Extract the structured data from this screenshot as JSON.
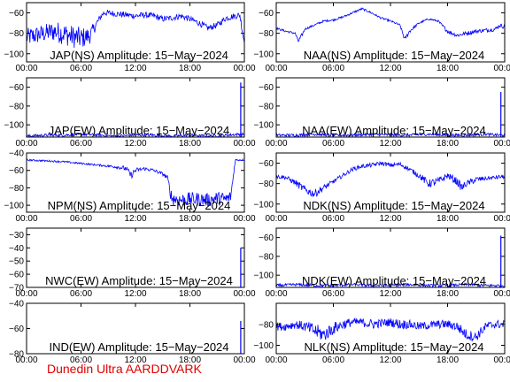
{
  "footer_text": "Dunedin Ultra AARDDVARK",
  "line_color": "#0000ff",
  "footer_color": "#e00000",
  "chart_data": [
    {
      "type": "line",
      "title": "JAP(NS) Amplitude: 15−May−2024",
      "ylim": [
        -108,
        -50
      ],
      "yticks": [
        -100,
        -80,
        -60
      ],
      "ytick_labels": [
        "−100",
        "−80",
        "−60"
      ],
      "xlim": [
        0,
        24
      ],
      "xtick_labels": [
        "00:00",
        "06:00",
        "12:00",
        "18:00",
        "00:00"
      ],
      "x": [
        0,
        1,
        2,
        3,
        4,
        5,
        6,
        7,
        8,
        8.5,
        9,
        10,
        11,
        12,
        13,
        14,
        15,
        16,
        17,
        18,
        19,
        20,
        21,
        22,
        23,
        23.5,
        24
      ],
      "y": [
        -84,
        -82,
        -80,
        -78,
        -80,
        -83,
        -85,
        -82,
        -66,
        -60,
        -60,
        -61,
        -62,
        -63,
        -62,
        -63,
        -66,
        -65,
        -63,
        -66,
        -70,
        -75,
        -72,
        -65,
        -63,
        -62,
        -89
      ],
      "noise": [
        9,
        9,
        9,
        10,
        11,
        11,
        11,
        8,
        3,
        3,
        3,
        3,
        3,
        3,
        3,
        3,
        3,
        3,
        3,
        3,
        3,
        3,
        3,
        3,
        3,
        3,
        5
      ]
    },
    {
      "type": "line",
      "title": "NAA(NS) Amplitude: 15−May−2024",
      "ylim": [
        -108,
        -50
      ],
      "yticks": [
        -100,
        -80,
        -60
      ],
      "ytick_labels": [
        "−100",
        "−80",
        "−60"
      ],
      "xlim": [
        0,
        24
      ],
      "xtick_labels": [
        "00:00",
        "06:00",
        "12:00",
        "18:00",
        "00:00"
      ],
      "x": [
        0,
        1,
        2,
        2.3,
        2.7,
        3,
        4,
        5,
        6,
        7,
        8,
        9,
        10,
        11,
        12,
        13,
        13.5,
        14,
        15,
        16,
        17,
        18,
        19,
        20,
        21,
        22,
        23,
        23.5,
        24
      ],
      "y": [
        -75,
        -78,
        -80,
        -88,
        -82,
        -76,
        -72,
        -68,
        -67,
        -64,
        -60,
        -56,
        -60,
        -65,
        -68,
        -72,
        -86,
        -78,
        -70,
        -66,
        -68,
        -78,
        -82,
        -80,
        -78,
        -77,
        -76,
        -72,
        -74
      ],
      "noise": [
        1,
        1,
        1,
        2,
        2,
        1,
        1,
        1,
        1,
        1,
        1,
        1,
        1,
        1,
        1,
        1,
        2,
        2,
        1,
        1,
        1,
        2,
        2,
        2,
        2,
        2,
        2,
        2,
        2
      ]
    },
    {
      "type": "line",
      "title": "JAP(EW) Amplitude: 15−May−2024",
      "ylim": [
        -113,
        -50
      ],
      "yticks": [
        -100,
        -80,
        -60
      ],
      "ytick_labels": [
        "−100",
        "−80",
        "−60"
      ],
      "xlim": [
        0,
        24
      ],
      "xtick_labels": [
        "00:00",
        "06:00",
        "12:00",
        "18:00",
        "00:00"
      ],
      "x": [
        0,
        2,
        4,
        6,
        8,
        10,
        12,
        14,
        16,
        18,
        20,
        22,
        23.4
      ],
      "y": [
        -112,
        -111,
        -111,
        -110,
        -111,
        -112,
        -111,
        -111,
        -112,
        -111,
        -112,
        -111,
        -110
      ],
      "noise": [
        1.5,
        1.5,
        1.5,
        1.5,
        1.5,
        1.5,
        1.5,
        1.5,
        1.5,
        1.5,
        1.5,
        1.5,
        1.5
      ],
      "spike_x": 23.6,
      "spike_y": -55
    },
    {
      "type": "line",
      "title": "NAA(EW) Amplitude: 15−May−2024",
      "ylim": [
        -113,
        -50
      ],
      "yticks": [
        -100,
        -80,
        -60
      ],
      "ytick_labels": [
        "−100",
        "−80",
        "−60"
      ],
      "xlim": [
        0,
        24
      ],
      "xtick_labels": [
        "00:00",
        "06:00",
        "12:00",
        "18:00",
        "00:00"
      ],
      "x": [
        0,
        2,
        4,
        6,
        8,
        10,
        12,
        14,
        16,
        18,
        20,
        22,
        23.4
      ],
      "y": [
        -111,
        -111,
        -110,
        -111,
        -111,
        -110,
        -111,
        -111,
        -110,
        -111,
        -111,
        -110,
        -111
      ],
      "noise": [
        1.5,
        1.5,
        1.5,
        1.5,
        1.5,
        1.5,
        1.5,
        1.5,
        1.5,
        1.5,
        1.5,
        1.5,
        1.5
      ],
      "spike_x": 23.6,
      "spike_y": -65
    },
    {
      "type": "line",
      "title": "NPM(NS) Amplitude: 15−May−2024",
      "ylim": [
        -108,
        -40
      ],
      "yticks": [
        -100,
        -80,
        -60,
        -40
      ],
      "ytick_labels": [
        "−100",
        "−80",
        "−60",
        "−40"
      ],
      "xlim": [
        0,
        24
      ],
      "xtick_labels": [
        "00:00",
        "06:00",
        "12:00",
        "18:00",
        "00:00"
      ],
      "x": [
        0,
        2,
        4,
        6,
        8,
        10,
        11,
        11.5,
        12,
        13,
        14,
        15,
        15.5,
        16,
        17,
        18,
        19,
        20,
        21,
        22,
        22.5,
        23,
        24
      ],
      "y": [
        -48,
        -49,
        -50,
        -52,
        -54,
        -56,
        -58,
        -66,
        -60,
        -58,
        -60,
        -64,
        -68,
        -92,
        -94,
        -93,
        -93,
        -94,
        -92,
        -93,
        -90,
        -48,
        -48
      ],
      "noise": [
        1,
        1,
        1,
        1,
        1,
        2,
        3,
        4,
        3,
        2,
        2,
        2,
        3,
        8,
        8,
        8,
        8,
        8,
        8,
        8,
        6,
        1,
        1
      ]
    },
    {
      "type": "line",
      "title": "NDK(NS) Amplitude: 15−May−2024",
      "ylim": [
        -108,
        -50
      ],
      "yticks": [
        -100,
        -80,
        -60
      ],
      "ytick_labels": [
        "−100",
        "−80",
        "−60"
      ],
      "xlim": [
        0,
        24
      ],
      "xtick_labels": [
        "00:00",
        "06:00",
        "12:00",
        "18:00",
        "00:00"
      ],
      "x": [
        0,
        1,
        2,
        3,
        4,
        5,
        6,
        7,
        8,
        9,
        10,
        11,
        12,
        13,
        14,
        15,
        16,
        17,
        18,
        19,
        19.5,
        20,
        21,
        22,
        23,
        24
      ],
      "y": [
        -73,
        -74,
        -79,
        -86,
        -90,
        -84,
        -78,
        -72,
        -66,
        -63,
        -62,
        -60,
        -62,
        -61,
        -66,
        -72,
        -80,
        -78,
        -72,
        -78,
        -84,
        -80,
        -76,
        -75,
        -74,
        -73
      ],
      "noise": [
        2,
        2,
        3,
        4,
        4,
        3,
        2,
        2,
        2,
        2,
        2,
        2,
        2,
        2,
        2,
        3,
        4,
        4,
        3,
        4,
        4,
        3,
        3,
        2,
        2,
        2
      ]
    },
    {
      "type": "line",
      "title": "NWC(EW) Amplitude: 15−May−2024",
      "ylim": [
        -70,
        -25
      ],
      "yticks": [
        -70,
        -60,
        -50,
        -40,
        -30
      ],
      "ytick_labels": [
        "−70",
        "−60",
        "−50",
        "−40",
        "−30"
      ],
      "xlim": [
        0,
        24
      ],
      "xtick_labels": [
        "00:00",
        "06:00",
        "12:00",
        "18:00",
        "00:00"
      ],
      "x": [],
      "y": [],
      "noise": [],
      "spike_x": 23.6,
      "spike_y": -40
    },
    {
      "type": "line",
      "title": "NDK(EW) Amplitude: 15−May−2024",
      "ylim": [
        -113,
        -50
      ],
      "yticks": [
        -100,
        -80,
        -60
      ],
      "ytick_labels": [
        "−100",
        "−80",
        "−60"
      ],
      "xlim": [
        0,
        24
      ],
      "xtick_labels": [
        "00:00",
        "06:00",
        "12:00",
        "18:00",
        "00:00"
      ],
      "x": [
        0,
        2,
        4,
        6,
        8,
        10,
        12,
        14,
        16,
        18,
        20,
        22,
        23.4
      ],
      "y": [
        -111,
        -110,
        -111,
        -111,
        -110,
        -111,
        -111,
        -110,
        -111,
        -111,
        -110,
        -111,
        -111
      ],
      "noise": [
        1.5,
        1.5,
        1.5,
        1.5,
        1.5,
        1.5,
        1.5,
        1.5,
        1.5,
        1.5,
        1.5,
        1.5,
        1.5
      ],
      "spike_x": 23.6,
      "spike_y": -58
    },
    {
      "type": "line",
      "title": "IND(EW) Amplitude: 15−May−2024",
      "ylim": [
        -80,
        -40
      ],
      "yticks": [
        -80,
        -60,
        -40
      ],
      "ytick_labels": [
        "−80",
        "−60",
        "−40"
      ],
      "xlim": [
        0,
        24
      ],
      "xtick_labels": [
        "00:00",
        "06:00",
        "12:00",
        "18:00",
        "00:00"
      ],
      "x": [],
      "y": [],
      "noise": [],
      "spike_x": 23.6,
      "spike_y": -54
    },
    {
      "type": "line",
      "title": "NLK(NS) Amplitude: 15−May−2024",
      "ylim": [
        -108,
        -60
      ],
      "yticks": [
        -100,
        -80
      ],
      "ytick_labels": [
        "−100",
        "−80"
      ],
      "xlim": [
        0,
        24
      ],
      "xtick_labels": [
        "00:00",
        "06:00",
        "12:00",
        "18:00",
        "00:00"
      ],
      "x": [
        0,
        1,
        2,
        3,
        4,
        5,
        6,
        7,
        8,
        9,
        10,
        11,
        12,
        13,
        14,
        15,
        16,
        17,
        18,
        19,
        20,
        21,
        22,
        23,
        24
      ],
      "y": [
        -82,
        -82,
        -80,
        -82,
        -86,
        -90,
        -84,
        -80,
        -78,
        -78,
        -80,
        -79,
        -78,
        -80,
        -80,
        -82,
        -81,
        -80,
        -80,
        -82,
        -90,
        -92,
        -82,
        -80,
        -80
      ],
      "noise": [
        4,
        4,
        4,
        5,
        7,
        7,
        6,
        5,
        4,
        4,
        5,
        4,
        4,
        5,
        4,
        4,
        4,
        4,
        4,
        5,
        5,
        5,
        4,
        4,
        4
      ]
    }
  ]
}
